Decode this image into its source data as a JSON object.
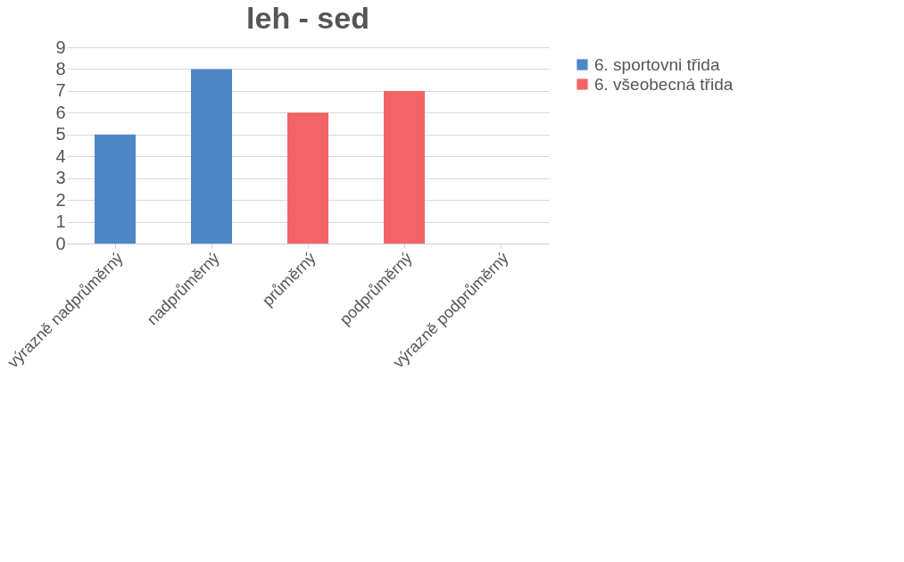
{
  "chart_data": {
    "type": "bar",
    "title": "leh - sed",
    "categories": [
      "výrazně nadprůměrný",
      "nadprůměrný",
      "průměrný",
      "podprůměrný",
      "výrazně podprůměrný"
    ],
    "series": [
      {
        "name": "6. sportovni třida",
        "color": "#4f86c6",
        "values": [
          5,
          8,
          null,
          null,
          null
        ]
      },
      {
        "name": "6. všeobecná třida",
        "color": "#f26466",
        "values": [
          null,
          null,
          6,
          7,
          null
        ]
      }
    ],
    "ylim": [
      0,
      9
    ],
    "yticks": [
      0,
      1,
      2,
      3,
      4,
      5,
      6,
      7,
      8,
      9
    ],
    "grid": "y",
    "legend": "right"
  }
}
